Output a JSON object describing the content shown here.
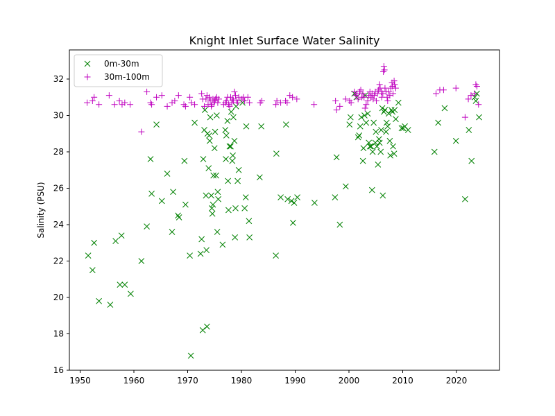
{
  "chart_data": {
    "type": "scatter",
    "title": "Knight Inlet Surface Water Salinity",
    "xlabel": "",
    "ylabel": "Salinity (PSU)",
    "xlim": [
      1948,
      2028
    ],
    "ylim": [
      16,
      33.6
    ],
    "xticks": [
      1950,
      1960,
      1970,
      1980,
      1990,
      2000,
      2010,
      2020
    ],
    "yticks": [
      16,
      18,
      20,
      22,
      24,
      26,
      28,
      30,
      32
    ],
    "grid": false,
    "legend_position": "top-left",
    "series": [
      {
        "name": "0m-30m",
        "marker": "x",
        "color": "#008000",
        "points": [
          [
            1951.5,
            22.3
          ],
          [
            1952.3,
            21.5
          ],
          [
            1952.6,
            23.0
          ],
          [
            1953.5,
            19.8
          ],
          [
            1955.6,
            19.6
          ],
          [
            1956.6,
            23.1
          ],
          [
            1957.4,
            20.7
          ],
          [
            1957.7,
            23.4
          ],
          [
            1958.3,
            20.7
          ],
          [
            1959.4,
            20.2
          ],
          [
            1961.4,
            22.0
          ],
          [
            1962.4,
            23.9
          ],
          [
            1963.1,
            27.6
          ],
          [
            1963.3,
            25.7
          ],
          [
            1964.2,
            29.5
          ],
          [
            1965.2,
            25.3
          ],
          [
            1966.2,
            26.8
          ],
          [
            1967.1,
            23.6
          ],
          [
            1967.3,
            25.8
          ],
          [
            1968.2,
            24.5
          ],
          [
            1968.4,
            24.4
          ],
          [
            1969.4,
            27.5
          ],
          [
            1969.6,
            25.1
          ],
          [
            1970.4,
            22.3
          ],
          [
            1970.6,
            16.8
          ],
          [
            1971.3,
            29.6
          ],
          [
            1972.4,
            22.4
          ],
          [
            1972.6,
            23.2
          ],
          [
            1972.8,
            18.2
          ],
          [
            1972.9,
            27.6
          ],
          [
            1973.1,
            29.2
          ],
          [
            1973.2,
            30.3
          ],
          [
            1973.4,
            25.6
          ],
          [
            1973.5,
            22.6
          ],
          [
            1973.6,
            18.4
          ],
          [
            1973.7,
            29.0
          ],
          [
            1973.9,
            27.1
          ],
          [
            1974.0,
            28.9
          ],
          [
            1974.1,
            28.6
          ],
          [
            1974.2,
            29.9
          ],
          [
            1974.4,
            25.6
          ],
          [
            1974.5,
            24.9
          ],
          [
            1974.6,
            24.6
          ],
          [
            1974.7,
            25.1
          ],
          [
            1974.8,
            26.7
          ],
          [
            1975.0,
            28.2
          ],
          [
            1975.1,
            29.1
          ],
          [
            1975.3,
            26.7
          ],
          [
            1975.4,
            30.0
          ],
          [
            1975.5,
            23.6
          ],
          [
            1975.6,
            25.8
          ],
          [
            1975.7,
            25.4
          ],
          [
            1976.5,
            22.9
          ],
          [
            1977.0,
            29.2
          ],
          [
            1977.1,
            27.6
          ],
          [
            1977.2,
            28.9
          ],
          [
            1977.4,
            29.7
          ],
          [
            1977.5,
            26.4
          ],
          [
            1977.6,
            24.8
          ],
          [
            1977.8,
            28.3
          ],
          [
            1978.0,
            28.3
          ],
          [
            1978.1,
            30.2
          ],
          [
            1978.3,
            27.5
          ],
          [
            1978.4,
            27.8
          ],
          [
            1978.5,
            29.9
          ],
          [
            1978.7,
            28.6
          ],
          [
            1978.8,
            23.3
          ],
          [
            1978.9,
            24.9
          ],
          [
            1979.0,
            30.5
          ],
          [
            1979.3,
            26.4
          ],
          [
            1979.5,
            27.0
          ],
          [
            1980.2,
            30.7
          ],
          [
            1980.6,
            24.9
          ],
          [
            1980.8,
            25.5
          ],
          [
            1980.9,
            29.4
          ],
          [
            1981.4,
            24.2
          ],
          [
            1981.5,
            23.3
          ],
          [
            1983.4,
            26.6
          ],
          [
            1983.7,
            29.4
          ],
          [
            1986.4,
            22.3
          ],
          [
            1986.5,
            27.9
          ],
          [
            1987.3,
            25.5
          ],
          [
            1988.3,
            29.5
          ],
          [
            1988.6,
            25.4
          ],
          [
            1989.3,
            25.3
          ],
          [
            1989.6,
            24.1
          ],
          [
            1989.8,
            25.2
          ],
          [
            1990.4,
            25.5
          ],
          [
            1993.6,
            25.2
          ],
          [
            1997.4,
            25.5
          ],
          [
            1997.7,
            27.7
          ],
          [
            1998.3,
            24.0
          ],
          [
            1999.4,
            26.1
          ],
          [
            2000.1,
            29.5
          ],
          [
            2000.3,
            29.9
          ],
          [
            2001.0,
            31.2
          ],
          [
            2001.4,
            31.0
          ],
          [
            2001.7,
            28.8
          ],
          [
            2001.9,
            28.9
          ],
          [
            2002.1,
            29.4
          ],
          [
            2002.3,
            29.9
          ],
          [
            2002.6,
            27.5
          ],
          [
            2002.7,
            28.2
          ],
          [
            2002.9,
            30.0
          ],
          [
            2003.0,
            31.1
          ],
          [
            2003.2,
            29.6
          ],
          [
            2003.5,
            30.1
          ],
          [
            2003.7,
            28.5
          ],
          [
            2003.9,
            28.3
          ],
          [
            2004.1,
            28.3
          ],
          [
            2004.3,
            25.9
          ],
          [
            2004.4,
            28.0
          ],
          [
            2004.6,
            29.6
          ],
          [
            2004.9,
            28.5
          ],
          [
            2005.0,
            29.1
          ],
          [
            2005.2,
            28.3
          ],
          [
            2005.4,
            27.3
          ],
          [
            2005.6,
            28.7
          ],
          [
            2005.7,
            28.5
          ],
          [
            2005.9,
            28.0
          ],
          [
            2006.0,
            29.2
          ],
          [
            2006.2,
            30.4
          ],
          [
            2006.3,
            25.6
          ],
          [
            2006.5,
            30.2
          ],
          [
            2006.7,
            30.3
          ],
          [
            2006.9,
            29.1
          ],
          [
            2007.0,
            29.6
          ],
          [
            2007.2,
            29.4
          ],
          [
            2007.4,
            30.1
          ],
          [
            2007.6,
            28.6
          ],
          [
            2007.7,
            27.8
          ],
          [
            2007.9,
            30.3
          ],
          [
            2008.1,
            30.2
          ],
          [
            2008.2,
            28.3
          ],
          [
            2008.4,
            27.9
          ],
          [
            2008.5,
            30.3
          ],
          [
            2008.7,
            29.8
          ],
          [
            2009.2,
            30.7
          ],
          [
            2009.8,
            29.3
          ],
          [
            2010.1,
            29.3
          ],
          [
            2010.4,
            29.4
          ],
          [
            2011.0,
            29.2
          ],
          [
            2015.9,
            28.0
          ],
          [
            2016.6,
            29.6
          ],
          [
            2017.8,
            30.4
          ],
          [
            2019.9,
            28.6
          ],
          [
            2021.6,
            25.4
          ],
          [
            2022.3,
            29.2
          ],
          [
            2022.8,
            27.5
          ],
          [
            2023.4,
            31.0
          ],
          [
            2023.6,
            30.8
          ],
          [
            2023.8,
            31.2
          ],
          [
            2024.2,
            29.9
          ]
        ]
      },
      {
        "name": "30m-100m",
        "marker": "+",
        "color": "#bf00bf",
        "points": [
          [
            1951.3,
            30.7
          ],
          [
            1952.3,
            30.8
          ],
          [
            1952.6,
            31.0
          ],
          [
            1953.5,
            30.6
          ],
          [
            1955.4,
            31.1
          ],
          [
            1956.4,
            30.6
          ],
          [
            1957.3,
            30.8
          ],
          [
            1957.8,
            30.6
          ],
          [
            1958.3,
            30.7
          ],
          [
            1959.3,
            30.6
          ],
          [
            1961.4,
            29.1
          ],
          [
            1962.4,
            31.3
          ],
          [
            1963.1,
            30.7
          ],
          [
            1963.3,
            30.6
          ],
          [
            1964.2,
            31.0
          ],
          [
            1965.2,
            31.1
          ],
          [
            1966.2,
            30.5
          ],
          [
            1967.1,
            30.7
          ],
          [
            1967.6,
            30.8
          ],
          [
            1968.3,
            31.1
          ],
          [
            1969.3,
            30.6
          ],
          [
            1969.6,
            30.5
          ],
          [
            1970.4,
            31.0
          ],
          [
            1970.7,
            30.7
          ],
          [
            1971.3,
            30.6
          ],
          [
            1972.6,
            31.2
          ],
          [
            1972.8,
            30.9
          ],
          [
            1973.1,
            30.5
          ],
          [
            1973.4,
            30.9
          ],
          [
            1973.6,
            31.1
          ],
          [
            1973.8,
            30.6
          ],
          [
            1974.0,
            31.0
          ],
          [
            1974.2,
            30.8
          ],
          [
            1974.4,
            30.5
          ],
          [
            1974.5,
            30.6
          ],
          [
            1974.7,
            30.9
          ],
          [
            1974.9,
            30.7
          ],
          [
            1975.0,
            30.8
          ],
          [
            1975.2,
            30.9
          ],
          [
            1975.4,
            31.0
          ],
          [
            1975.6,
            30.7
          ],
          [
            1975.8,
            30.9
          ],
          [
            1976.7,
            30.6
          ],
          [
            1977.0,
            30.7
          ],
          [
            1977.2,
            30.8
          ],
          [
            1977.4,
            31.0
          ],
          [
            1977.6,
            30.6
          ],
          [
            1977.8,
            30.5
          ],
          [
            1978.0,
            31.0
          ],
          [
            1978.2,
            30.7
          ],
          [
            1978.4,
            30.9
          ],
          [
            1978.5,
            30.8
          ],
          [
            1978.7,
            31.3
          ],
          [
            1978.9,
            31.1
          ],
          [
            1979.1,
            30.8
          ],
          [
            1979.3,
            30.7
          ],
          [
            1979.5,
            31.0
          ],
          [
            1980.1,
            30.9
          ],
          [
            1980.4,
            31.0
          ],
          [
            1980.6,
            30.8
          ],
          [
            1981.2,
            31.0
          ],
          [
            1981.5,
            30.7
          ],
          [
            1983.5,
            30.7
          ],
          [
            1983.8,
            30.8
          ],
          [
            1986.4,
            30.6
          ],
          [
            1986.6,
            30.8
          ],
          [
            1987.3,
            30.7
          ],
          [
            1988.2,
            30.8
          ],
          [
            1988.5,
            30.7
          ],
          [
            1989.0,
            31.1
          ],
          [
            1989.5,
            31.0
          ],
          [
            1990.3,
            30.9
          ],
          [
            1993.5,
            30.6
          ],
          [
            1997.5,
            30.8
          ],
          [
            1997.7,
            30.3
          ],
          [
            1998.3,
            30.5
          ],
          [
            1999.4,
            30.9
          ],
          [
            2000.1,
            30.8
          ],
          [
            2000.4,
            30.7
          ],
          [
            2001.0,
            31.3
          ],
          [
            2001.3,
            31.1
          ],
          [
            2001.5,
            31.2
          ],
          [
            2001.7,
            30.9
          ],
          [
            2002.0,
            31.3
          ],
          [
            2002.2,
            31.4
          ],
          [
            2002.4,
            31.0
          ],
          [
            2002.6,
            31.2
          ],
          [
            2002.8,
            31.0
          ],
          [
            2003.0,
            30.4
          ],
          [
            2003.2,
            30.6
          ],
          [
            2003.5,
            30.8
          ],
          [
            2003.7,
            31.1
          ],
          [
            2003.9,
            31.3
          ],
          [
            2004.1,
            31.0
          ],
          [
            2004.3,
            31.2
          ],
          [
            2004.5,
            30.9
          ],
          [
            2004.7,
            31.1
          ],
          [
            2004.9,
            31.3
          ],
          [
            2005.1,
            30.8
          ],
          [
            2005.3,
            31.2
          ],
          [
            2005.5,
            31.4
          ],
          [
            2005.7,
            31.7
          ],
          [
            2005.8,
            31.5
          ],
          [
            2006.0,
            31.3
          ],
          [
            2006.1,
            31.0
          ],
          [
            2006.3,
            31.2
          ],
          [
            2006.4,
            32.4
          ],
          [
            2006.5,
            32.7
          ],
          [
            2006.6,
            32.5
          ],
          [
            2006.7,
            31.5
          ],
          [
            2006.9,
            31.3
          ],
          [
            2007.1,
            31.0
          ],
          [
            2007.2,
            30.8
          ],
          [
            2007.4,
            31.3
          ],
          [
            2007.6,
            31.1
          ],
          [
            2007.8,
            31.5
          ],
          [
            2008.0,
            31.8
          ],
          [
            2008.1,
            31.6
          ],
          [
            2008.2,
            31.2
          ],
          [
            2008.4,
            31.9
          ],
          [
            2008.5,
            31.7
          ],
          [
            2008.7,
            31.5
          ],
          [
            2016.2,
            31.2
          ],
          [
            2016.9,
            31.4
          ],
          [
            2017.6,
            31.4
          ],
          [
            2019.9,
            31.5
          ],
          [
            2021.6,
            29.9
          ],
          [
            2022.2,
            30.9
          ],
          [
            2022.7,
            31.1
          ],
          [
            2023.3,
            31.2
          ],
          [
            2023.6,
            31.7
          ],
          [
            2023.8,
            31.6
          ],
          [
            2024.1,
            30.6
          ]
        ]
      }
    ]
  }
}
